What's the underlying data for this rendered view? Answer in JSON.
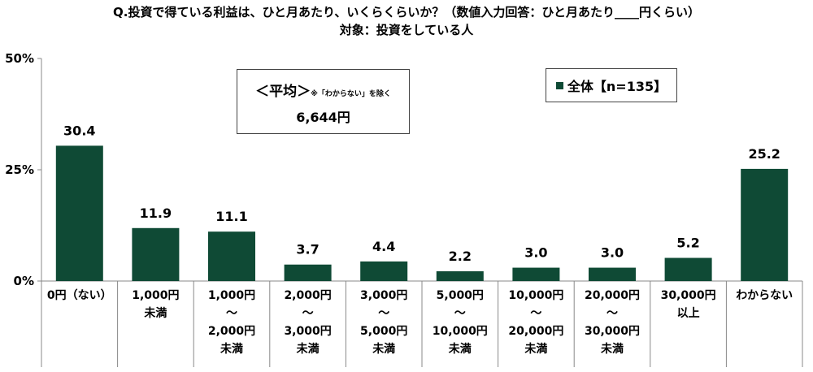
{
  "header": {
    "title": "Q.投資で得ている利益は、ひと月あたり、いくらくらいか？（数値入力回答：ひと月あたり____円くらい）",
    "subtitle": "対象：投資をしている人"
  },
  "average": {
    "label": "＜平均＞",
    "note": "※「わからない」を除く",
    "value": "6,644円"
  },
  "legend": {
    "label": "全体【n=135】"
  },
  "colors": {
    "bar": "#0f4a35",
    "axis": "#888888"
  },
  "chart_data": {
    "type": "bar",
    "categories": [
      [
        "0円（ない）"
      ],
      [
        "1,000円",
        "未満"
      ],
      [
        "1,000円",
        "～",
        "2,000円",
        "未満"
      ],
      [
        "2,000円",
        "～",
        "3,000円",
        "未満"
      ],
      [
        "3,000円",
        "～",
        "5,000円",
        "未満"
      ],
      [
        "5,000円",
        "～",
        "10,000円",
        "未満"
      ],
      [
        "10,000円",
        "～",
        "20,000円",
        "未満"
      ],
      [
        "20,000円",
        "～",
        "30,000円",
        "未満"
      ],
      [
        "30,000円",
        "以上"
      ],
      [
        "わからない"
      ]
    ],
    "series": [
      {
        "name": "全体【n=135】",
        "values": [
          30.4,
          11.9,
          11.1,
          3.7,
          4.4,
          2.2,
          3.0,
          3.0,
          5.2,
          25.2
        ]
      }
    ],
    "value_labels": [
      "30.4",
      "11.9",
      "11.1",
      "3.7",
      "4.4",
      "2.2",
      "3.0",
      "3.0",
      "5.2",
      "25.2"
    ],
    "yticks": [
      {
        "value": 0,
        "label": "0%"
      },
      {
        "value": 25,
        "label": "25%"
      },
      {
        "value": 50,
        "label": "50%"
      }
    ],
    "ylim": [
      0,
      50
    ],
    "grid": false,
    "legend_position": "top-right"
  }
}
